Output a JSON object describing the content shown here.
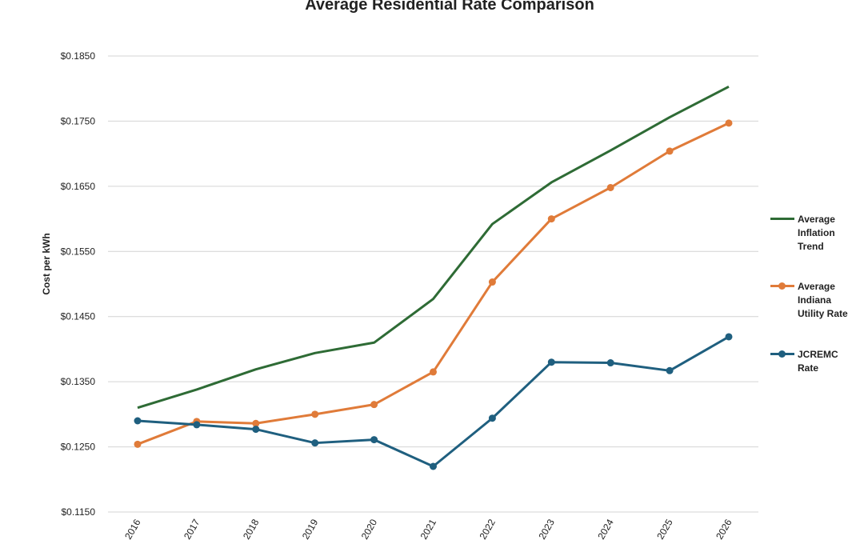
{
  "chart_data": {
    "type": "line",
    "title": "Average Residential Rate Comparison",
    "y_label": "Cost per kWh",
    "categories": [
      "2016",
      "2017",
      "2018",
      "2019",
      "2020",
      "2021",
      "2022",
      "2023",
      "2024",
      "2025",
      "2026"
    ],
    "series": [
      {
        "name": "Average Inflation Trend",
        "color": "#2e6b35",
        "markers": false,
        "values": [
          0.131,
          0.1338,
          0.1369,
          0.1394,
          0.141,
          0.1477,
          0.1592,
          0.1656,
          0.1705,
          0.1756,
          0.1803
        ]
      },
      {
        "name": "Average Indiana Utility Rate",
        "color": "#e07b39",
        "markers": true,
        "values": [
          0.1254,
          0.1289,
          0.1286,
          0.13,
          0.1315,
          0.1365,
          0.1503,
          0.16,
          0.1648,
          0.1704,
          0.1747
        ]
      },
      {
        "name": "JCREMC Rate",
        "color": "#1f5f7f",
        "markers": true,
        "values": [
          0.129,
          0.1284,
          0.1277,
          0.1256,
          0.1261,
          0.122,
          0.1294,
          0.138,
          0.1379,
          0.1367,
          0.1419
        ]
      }
    ],
    "ylim": [
      0.115,
      0.185
    ],
    "yticks": [
      {
        "value": 0.115,
        "label": "$0.1150"
      },
      {
        "value": 0.125,
        "label": "$0.1250"
      },
      {
        "value": 0.135,
        "label": "$0.1350"
      },
      {
        "value": 0.145,
        "label": "$0.1450"
      },
      {
        "value": 0.155,
        "label": "$0.1550"
      },
      {
        "value": 0.165,
        "label": "$0.1650"
      },
      {
        "value": 0.175,
        "label": "$0.1750"
      },
      {
        "value": 0.185,
        "label": "$0.1850"
      }
    ],
    "grid": true,
    "legend": "right"
  }
}
